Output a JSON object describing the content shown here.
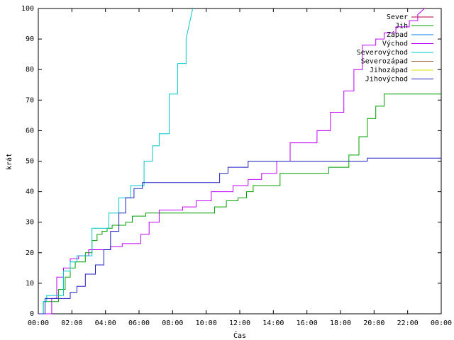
{
  "chart_data": {
    "type": "line",
    "title": "",
    "xlabel": "Čas",
    "ylabel": "krát",
    "xlim": [
      0,
      24
    ],
    "ylim": [
      0,
      100
    ],
    "grid": false,
    "legend_position": "top-right",
    "x_ticks": [
      {
        "value": 0,
        "label": "00:00"
      },
      {
        "value": 2,
        "label": "02:00"
      },
      {
        "value": 4,
        "label": "04:00"
      },
      {
        "value": 6,
        "label": "06:00"
      },
      {
        "value": 8,
        "label": "08:00"
      },
      {
        "value": 10,
        "label": "10:00"
      },
      {
        "value": 12,
        "label": "12:00"
      },
      {
        "value": 14,
        "label": "14:00"
      },
      {
        "value": 16,
        "label": "16:00"
      },
      {
        "value": 18,
        "label": "18:00"
      },
      {
        "value": 20,
        "label": "20:00"
      },
      {
        "value": 22,
        "label": "22:00"
      },
      {
        "value": 24,
        "label": "00:00"
      }
    ],
    "y_ticks": [
      0,
      10,
      20,
      30,
      40,
      50,
      60,
      70,
      80,
      90,
      100
    ],
    "series": [
      {
        "name": "Sever",
        "color": "#c00040",
        "x": [],
        "y": []
      },
      {
        "name": "Jih",
        "color": "#00a000",
        "x": [
          0,
          0.3,
          0.3,
          1.2,
          1.2,
          1.6,
          1.6,
          1.9,
          1.9,
          2.2,
          2.2,
          2.8,
          2.8,
          3.2,
          3.2,
          3.5,
          3.5,
          3.8,
          3.8,
          4.1,
          4.1,
          4.4,
          4.4,
          5.2,
          5.2,
          5.6,
          5.6,
          6.4,
          6.4,
          7.3,
          7.3,
          10.5,
          10.5,
          11.2,
          11.2,
          11.9,
          11.9,
          12.4,
          12.4,
          12.8,
          12.8,
          14.4,
          14.4,
          17.3,
          17.3,
          18.5,
          18.5,
          19.1,
          19.1,
          19.6,
          19.6,
          20.1,
          20.1,
          20.6,
          20.6,
          24
        ],
        "y": [
          0,
          0,
          4,
          4,
          8,
          8,
          12,
          12,
          15,
          15,
          17,
          17,
          20,
          20,
          24,
          24,
          26,
          26,
          27,
          27,
          28,
          28,
          29,
          29,
          30,
          30,
          32,
          32,
          33,
          33,
          33,
          33,
          35,
          35,
          37,
          37,
          38,
          38,
          40,
          40,
          42,
          42,
          46,
          46,
          48,
          48,
          52,
          52,
          58,
          58,
          64,
          64,
          68,
          68,
          72,
          72
        ]
      },
      {
        "name": "Západ",
        "color": "#0080ff",
        "x": [],
        "y": []
      },
      {
        "name": "Východ",
        "color": "#c000ff",
        "x": [
          0,
          0.8,
          0.8,
          1.1,
          1.1,
          1.5,
          1.5,
          1.9,
          1.9,
          2.4,
          2.4,
          3.0,
          3.0,
          4.3,
          4.3,
          5.0,
          5.0,
          6.1,
          6.1,
          6.6,
          6.6,
          7.2,
          7.2,
          8.6,
          8.6,
          9.4,
          9.4,
          10.3,
          10.3,
          11.6,
          11.6,
          12.5,
          12.5,
          13.3,
          13.3,
          14.2,
          14.2,
          15.0,
          15.0,
          16.6,
          16.6,
          17.4,
          17.4,
          18.2,
          18.2,
          18.8,
          18.8,
          19.3,
          19.3,
          20.1,
          20.1,
          20.6,
          20.6,
          21.3,
          21.3,
          22.1,
          22.1,
          22.6,
          22.6,
          23.0
        ],
        "y": [
          0,
          0,
          5,
          5,
          12,
          12,
          15,
          15,
          18,
          18,
          19,
          19,
          21,
          21,
          22,
          22,
          23,
          23,
          26,
          26,
          30,
          30,
          34,
          34,
          35,
          35,
          37,
          37,
          40,
          40,
          42,
          42,
          44,
          44,
          46,
          46,
          50,
          50,
          56,
          56,
          60,
          60,
          66,
          66,
          73,
          73,
          80,
          80,
          88,
          88,
          90,
          90,
          92,
          92,
          94,
          94,
          96,
          96,
          98,
          100
        ]
      },
      {
        "name": "Severovýchod",
        "color": "#00c8c8",
        "x": [
          0,
          0.3,
          0.3,
          0.5,
          0.5,
          1.5,
          1.5,
          1.9,
          1.9,
          2.3,
          2.3,
          3.2,
          3.2,
          4.2,
          4.2,
          4.8,
          4.8,
          5.5,
          5.5,
          6.3,
          6.3,
          6.8,
          6.8,
          7.2,
          7.2,
          7.8,
          7.8,
          8.3,
          8.3,
          8.8,
          8.8,
          9.2
        ],
        "y": [
          0,
          0,
          4,
          4,
          6,
          6,
          14,
          14,
          17,
          17,
          19,
          19,
          28,
          28,
          33,
          33,
          38,
          38,
          42,
          42,
          50,
          50,
          55,
          55,
          59,
          59,
          72,
          72,
          82,
          82,
          90,
          100
        ]
      },
      {
        "name": "Severozápad",
        "color": "#a06030",
        "x": [],
        "y": []
      },
      {
        "name": "Jihozápad",
        "color": "#e0e000",
        "x": [],
        "y": []
      },
      {
        "name": "Jihovýchod",
        "color": "#2020c0",
        "x": [
          0,
          0.4,
          0.4,
          1.9,
          1.9,
          2.3,
          2.3,
          2.8,
          2.8,
          3.4,
          3.4,
          3.9,
          3.9,
          4.3,
          4.3,
          4.8,
          4.8,
          5.2,
          5.2,
          5.7,
          5.7,
          6.2,
          6.2,
          6.7,
          6.7,
          10.8,
          10.8,
          11.3,
          11.3,
          12.5,
          12.5,
          19.6,
          19.6,
          24
        ],
        "y": [
          0,
          0,
          5,
          5,
          7,
          7,
          9,
          9,
          13,
          13,
          16,
          16,
          21,
          21,
          27,
          27,
          33,
          33,
          38,
          38,
          41,
          41,
          43,
          43,
          43,
          43,
          46,
          46,
          48,
          48,
          50,
          50,
          51,
          51
        ]
      }
    ]
  }
}
